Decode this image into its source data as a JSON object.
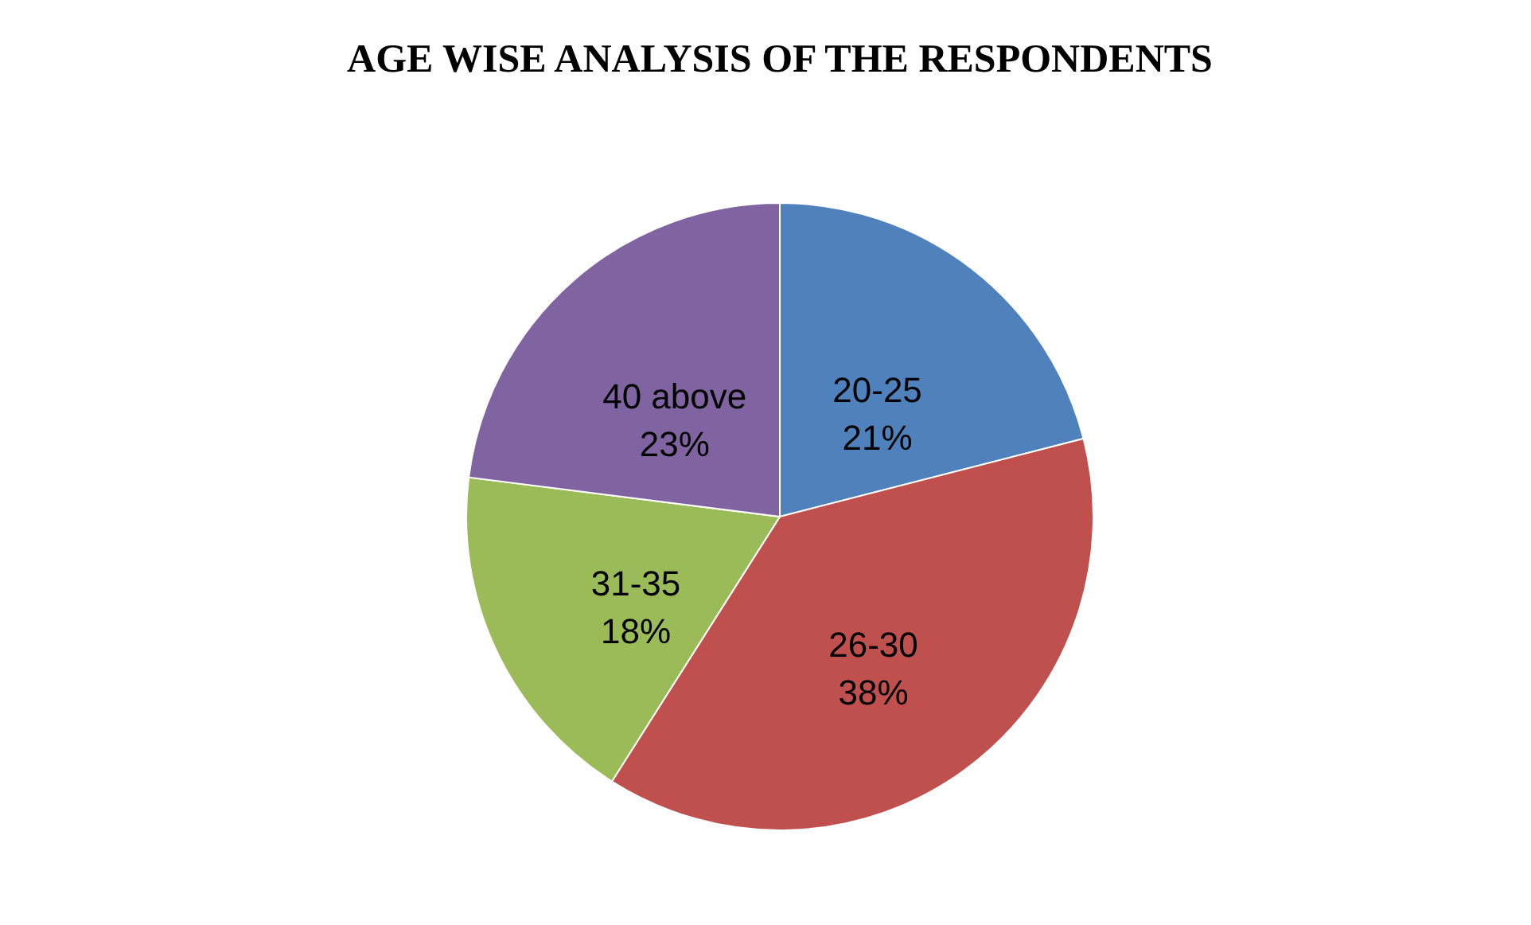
{
  "chart_data": {
    "type": "pie",
    "title": "AGE WISE ANALYSIS OF THE RESPONDENTS",
    "categories": [
      "20-25",
      "26-30",
      "31-35",
      "40 above"
    ],
    "values": [
      21,
      38,
      18,
      23
    ],
    "colors": [
      "#4f81bd",
      "#c0504d",
      "#9bbb59",
      "#8064a2"
    ],
    "value_labels": [
      "21%",
      "38%",
      "18%",
      "23%"
    ]
  }
}
